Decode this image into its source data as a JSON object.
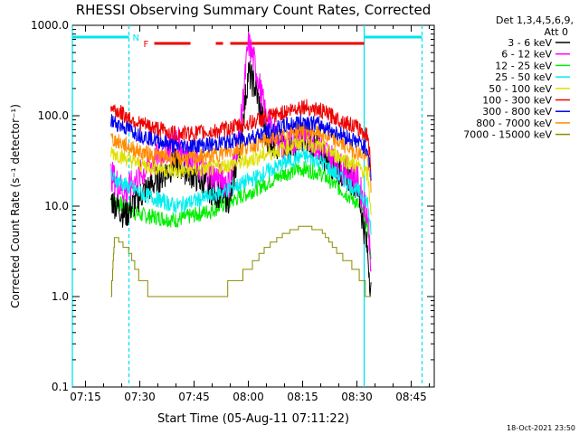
{
  "chart_data": {
    "type": "line",
    "title": "RHESSI Observing Summary Count Rates, Corrected",
    "xlabel": "Start Time (05-Aug-11 07:11:22)",
    "ylabel": "Corrected Count Rate (s⁻¹ detector⁻¹)",
    "y_scale": "log",
    "ylim": [
      0.1,
      1000
    ],
    "xlim": [
      "07:11:22",
      "08:51:22"
    ],
    "x_ticks": [
      "07:15",
      "07:30",
      "07:45",
      "08:00",
      "08:15",
      "08:30",
      "08:45"
    ],
    "y_ticks": [
      "0.1",
      "1.0",
      "10.0",
      "100.0",
      "1000.0"
    ],
    "detectors_label": "Det 1,3,4,5,6,9,",
    "attenuator_label": "Att 0",
    "footer_date": "18-Oct-2021 23:50",
    "flags": {
      "N_label": "N",
      "F_label": "F",
      "night_color": "#00e5ee",
      "flare_color": "#ee0000",
      "night_segments": [
        [
          "07:11:22",
          "07:27:00"
        ],
        [
          "08:32:00",
          "08:48:00"
        ]
      ],
      "flare_segments": [
        [
          "07:34:00",
          "07:44:00"
        ],
        [
          "07:51:00",
          "07:53:00"
        ],
        [
          "07:55:00",
          "08:32:00"
        ]
      ],
      "night_vlines_solid": [
        "07:11:22",
        "08:32:00"
      ],
      "night_vlines_dashed": [
        "07:27:00",
        "08:48:00"
      ]
    },
    "series": [
      {
        "name": "3 - 6 keV",
        "color": "#000000",
        "x": [
          "07:22",
          "07:26",
          "07:30",
          "07:35",
          "07:40",
          "07:45",
          "07:50",
          "07:55",
          "07:58",
          "08:00",
          "08:02",
          "08:05",
          "08:10",
          "08:15",
          "08:20",
          "08:25",
          "08:30",
          "08:33",
          "08:34"
        ],
        "values": [
          12,
          8,
          13,
          20,
          30,
          22,
          15,
          12,
          60,
          300,
          200,
          60,
          40,
          60,
          40,
          25,
          18,
          3,
          1
        ]
      },
      {
        "name": "6 - 12 keV",
        "color": "#ff00ff",
        "x": [
          "07:22",
          "07:26",
          "07:30",
          "07:35",
          "07:40",
          "07:45",
          "07:50",
          "07:55",
          "07:58",
          "08:00",
          "08:02",
          "08:05",
          "08:10",
          "08:15",
          "08:20",
          "08:25",
          "08:30",
          "08:33",
          "08:34"
        ],
        "values": [
          22,
          14,
          22,
          35,
          55,
          30,
          22,
          18,
          90,
          650,
          350,
          90,
          45,
          65,
          45,
          28,
          20,
          8,
          2
        ]
      },
      {
        "name": "12 - 25 keV",
        "color": "#00ee00",
        "x": [
          "07:22",
          "07:30",
          "07:40",
          "07:50",
          "08:00",
          "08:10",
          "08:15",
          "08:20",
          "08:30",
          "08:33",
          "08:34"
        ],
        "values": [
          12,
          8,
          7,
          9,
          14,
          23,
          26,
          23,
          11,
          6,
          2
        ]
      },
      {
        "name": "25 - 50 keV",
        "color": "#00eeee",
        "x": [
          "07:22",
          "07:30",
          "07:40",
          "07:50",
          "08:00",
          "08:10",
          "08:15",
          "08:20",
          "08:30",
          "08:33",
          "08:34"
        ],
        "values": [
          21,
          14,
          10,
          13,
          19,
          30,
          36,
          31,
          15,
          11,
          4
        ]
      },
      {
        "name": "50 - 100 keV",
        "color": "#e0e000",
        "x": [
          "07:22",
          "07:30",
          "07:40",
          "07:50",
          "08:00",
          "08:10",
          "08:15",
          "08:20",
          "08:30",
          "08:33",
          "08:34"
        ],
        "values": [
          40,
          29,
          24,
          26,
          32,
          44,
          52,
          45,
          28,
          22,
          8
        ]
      },
      {
        "name": "100 - 300 keV",
        "color": "#ee0000",
        "x": [
          "07:22",
          "07:30",
          "07:40",
          "07:50",
          "08:00",
          "08:10",
          "08:15",
          "08:20",
          "08:30",
          "08:33",
          "08:34"
        ],
        "values": [
          123,
          82,
          63,
          66,
          82,
          110,
          128,
          113,
          74,
          60,
          25
        ]
      },
      {
        "name": "300 - 800 keV",
        "color": "#0000ee",
        "x": [
          "07:22",
          "07:30",
          "07:40",
          "07:50",
          "08:00",
          "08:10",
          "08:15",
          "08:20",
          "08:30",
          "08:33",
          "08:34"
        ],
        "values": [
          88,
          62,
          46,
          48,
          57,
          77,
          88,
          79,
          52,
          43,
          20
        ]
      },
      {
        "name": "800 - 7000 keV",
        "color": "#ff8c00",
        "x": [
          "07:22",
          "07:30",
          "07:40",
          "07:50",
          "08:00",
          "08:10",
          "08:15",
          "08:20",
          "08:30",
          "08:33",
          "08:34"
        ],
        "values": [
          56,
          40,
          33,
          36,
          46,
          62,
          72,
          64,
          40,
          34,
          14
        ]
      },
      {
        "name": "7000 - 15000 keV",
        "color": "#8b8b00",
        "x": [
          "07:22",
          "07:23",
          "07:27",
          "07:30",
          "07:34",
          "07:40",
          "07:50",
          "07:55",
          "08:00",
          "08:05",
          "08:10",
          "08:15",
          "08:20",
          "08:25",
          "08:30",
          "08:32",
          "08:34"
        ],
        "values": [
          1,
          4.7,
          3.2,
          1.6,
          1,
          1,
          1,
          1.3,
          2,
          3.5,
          5,
          6,
          5.5,
          3,
          2,
          1.3,
          1
        ]
      }
    ]
  }
}
